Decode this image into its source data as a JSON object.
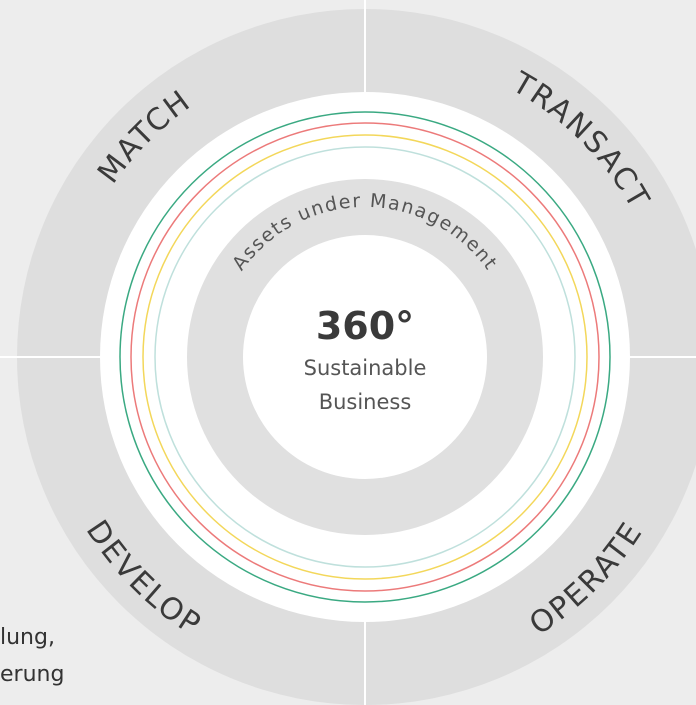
{
  "side_text": [
    "lung,",
    "erung"
  ],
  "segments": [
    "MATCH",
    "TRANSACT",
    "DEVELOP",
    "OPERATE"
  ],
  "ring_label": "Assets under Management",
  "center": {
    "title": "360°",
    "line1": "Sustainable",
    "line2": "Business"
  }
}
